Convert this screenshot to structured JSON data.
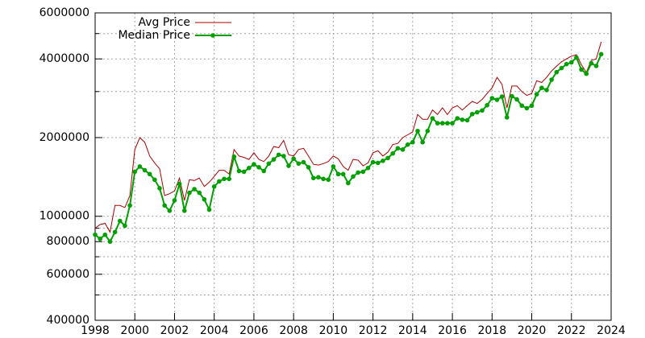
{
  "chart_data": {
    "type": "line",
    "log_y": true,
    "grid": true,
    "legend": "top-left",
    "xlim": [
      1998,
      2024
    ],
    "xticks": [
      1998,
      2000,
      2002,
      2004,
      2006,
      2008,
      2010,
      2012,
      2014,
      2016,
      2018,
      2020,
      2022,
      2024
    ],
    "ylim": [
      400000,
      6000000
    ],
    "yticks": [
      400000,
      600000,
      800000,
      1000000,
      2000000,
      4000000,
      6000000
    ],
    "y_minor_ticks": [
      500000,
      700000,
      900000,
      3000000,
      5000000
    ],
    "x": [
      1998,
      1998.25,
      1998.5,
      1998.75,
      1999,
      1999.25,
      1999.5,
      1999.75,
      2000,
      2000.25,
      2000.5,
      2000.75,
      2001,
      2001.25,
      2001.5,
      2001.75,
      2002,
      2002.25,
      2002.5,
      2002.75,
      2003,
      2003.25,
      2003.5,
      2003.75,
      2004,
      2004.25,
      2004.5,
      2004.75,
      2005,
      2005.25,
      2005.5,
      2005.75,
      2006,
      2006.25,
      2006.5,
      2006.75,
      2007,
      2007.25,
      2007.5,
      2007.75,
      2008,
      2008.25,
      2008.5,
      2008.75,
      2009,
      2009.25,
      2009.5,
      2009.75,
      2010,
      2010.25,
      2010.5,
      2010.75,
      2011,
      2011.25,
      2011.5,
      2011.75,
      2012,
      2012.25,
      2012.5,
      2012.75,
      2013,
      2013.25,
      2013.5,
      2013.75,
      2014,
      2014.25,
      2014.5,
      2014.75,
      2015,
      2015.25,
      2015.5,
      2015.75,
      2016,
      2016.25,
      2016.5,
      2016.75,
      2017,
      2017.25,
      2017.5,
      2017.75,
      2018,
      2018.25,
      2018.5,
      2018.75,
      2019,
      2019.25,
      2019.5,
      2019.75,
      2020,
      2020.25,
      2020.5,
      2020.75,
      2021,
      2021.25,
      2021.5,
      2021.75,
      2022,
      2022.25,
      2022.5,
      2022.75,
      2023,
      2023.25,
      2023.5
    ],
    "series": [
      {
        "name": "Avg Price",
        "color": "#aa0000",
        "markers": false,
        "values": [
          900000,
          930000,
          940000,
          870000,
          1100000,
          1100000,
          1080000,
          1200000,
          1800000,
          2000000,
          1920000,
          1700000,
          1600000,
          1520000,
          1200000,
          1220000,
          1250000,
          1400000,
          1150000,
          1380000,
          1370000,
          1400000,
          1300000,
          1350000,
          1420000,
          1500000,
          1500000,
          1450000,
          1800000,
          1700000,
          1680000,
          1650000,
          1750000,
          1650000,
          1620000,
          1700000,
          1850000,
          1830000,
          1950000,
          1720000,
          1700000,
          1800000,
          1820000,
          1700000,
          1580000,
          1570000,
          1590000,
          1620000,
          1700000,
          1660000,
          1550000,
          1500000,
          1650000,
          1640000,
          1560000,
          1600000,
          1750000,
          1780000,
          1700000,
          1760000,
          1880000,
          1900000,
          2000000,
          2050000,
          2100000,
          2450000,
          2350000,
          2350000,
          2550000,
          2450000,
          2600000,
          2450000,
          2600000,
          2650000,
          2550000,
          2650000,
          2750000,
          2700000,
          2800000,
          2950000,
          3100000,
          3400000,
          3200000,
          2600000,
          3150000,
          3150000,
          3000000,
          2900000,
          2950000,
          3300000,
          3250000,
          3400000,
          3600000,
          3750000,
          3900000,
          4000000,
          4100000,
          4150000,
          3800000,
          3550000,
          3950000,
          4000000,
          4650000
        ]
      },
      {
        "name": "Median Price",
        "color": "#00a000",
        "markers": true,
        "values": [
          850000,
          820000,
          850000,
          800000,
          870000,
          960000,
          920000,
          1100000,
          1480000,
          1550000,
          1500000,
          1450000,
          1380000,
          1280000,
          1100000,
          1050000,
          1150000,
          1330000,
          1050000,
          1230000,
          1270000,
          1230000,
          1160000,
          1060000,
          1300000,
          1360000,
          1390000,
          1390000,
          1690000,
          1490000,
          1480000,
          1530000,
          1580000,
          1540000,
          1490000,
          1590000,
          1650000,
          1720000,
          1700000,
          1560000,
          1660000,
          1590000,
          1610000,
          1540000,
          1400000,
          1410000,
          1390000,
          1380000,
          1550000,
          1450000,
          1450000,
          1340000,
          1420000,
          1470000,
          1480000,
          1530000,
          1610000,
          1600000,
          1630000,
          1670000,
          1740000,
          1820000,
          1800000,
          1880000,
          1920000,
          2120000,
          1920000,
          2120000,
          2370000,
          2270000,
          2270000,
          2270000,
          2270000,
          2370000,
          2340000,
          2330000,
          2460000,
          2500000,
          2540000,
          2660000,
          2830000,
          2790000,
          2870000,
          2390000,
          2880000,
          2800000,
          2650000,
          2590000,
          2650000,
          2930000,
          3100000,
          3040000,
          3330000,
          3560000,
          3690000,
          3820000,
          3880000,
          4050000,
          3640000,
          3510000,
          3850000,
          3760000,
          4170000
        ]
      }
    ]
  }
}
